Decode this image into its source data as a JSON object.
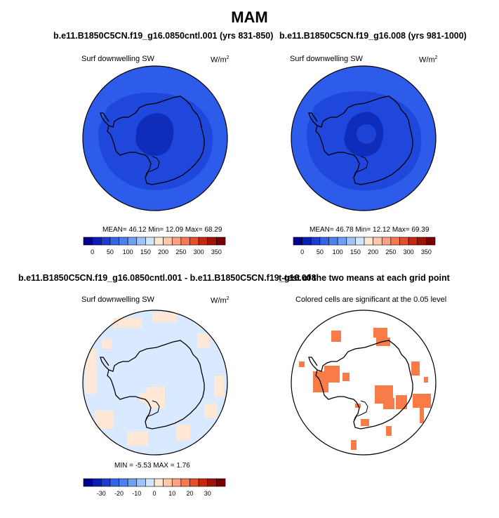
{
  "figure": {
    "title": "MAM"
  },
  "panels": {
    "control": {
      "title": "b.e11.B1850C5CN.f19_g16.0850cntl.001 (yrs 831-850)",
      "field": "Surf downwelling SW",
      "units": "W/m",
      "units_sup": "2",
      "stats": "MEAN=  46.12  Min=  12.09  Max=  68.29",
      "colorbar_ticks": [
        "0",
        "50",
        "100",
        "150",
        "200",
        "250",
        "300",
        "350"
      ]
    },
    "experiment": {
      "title": "b.e11.B1850C5CN.f19_g16.008 (yrs 981-1000)",
      "field": "Surf downwelling SW",
      "units": "W/m",
      "units_sup": "2",
      "stats": "MEAN=  46.78  Min=  12.12  Max=  69.39",
      "colorbar_ticks": [
        "0",
        "50",
        "100",
        "150",
        "200",
        "250",
        "300",
        "350"
      ]
    },
    "difference": {
      "title": "b.e11.B1850C5CN.f19_g16.0850cntl.001 - b.e11.B1850C5CN.f19_g16.008",
      "field": "Surf downwelling SW",
      "units": "W/m",
      "units_sup": "2",
      "stats": "MIN =  -5.53  MAX =   1.76",
      "colorbar_ticks": [
        "-30",
        "-20",
        "-10",
        "0",
        "10",
        "20",
        "30"
      ]
    },
    "ttest": {
      "title": "t-test of the two means at each grid point",
      "subtitle": "Colored cells are significant at the 0.05 level"
    }
  },
  "colors": {
    "abs_scale": [
      "#00008c",
      "#0a1eb4",
      "#1e3cd2",
      "#3264e6",
      "#4b82f0",
      "#6ea0f5",
      "#a0c3fa",
      "#d2e6ff",
      "#ffe6d2",
      "#ffc8aa",
      "#ffa082",
      "#f57850",
      "#e65028",
      "#c8280f",
      "#a01405",
      "#780000"
    ],
    "diff_scale": [
      "#00008c",
      "#0a1eb4",
      "#1e3cd2",
      "#3264e6",
      "#4b82f0",
      "#6ea0f5",
      "#a0c3fa",
      "#d2e6ff",
      "#ffe6d2",
      "#ffc8aa",
      "#ffa082",
      "#f57850",
      "#e65028",
      "#c8280f",
      "#a01405",
      "#780000"
    ],
    "map_outer": "#2d5cea",
    "map_ring": "#1f47dc",
    "map_core": "#0e2dbb",
    "diff_bg": "#d9e9ff",
    "diff_pos": "#ffe8d5",
    "sig": "#f97b48"
  }
}
